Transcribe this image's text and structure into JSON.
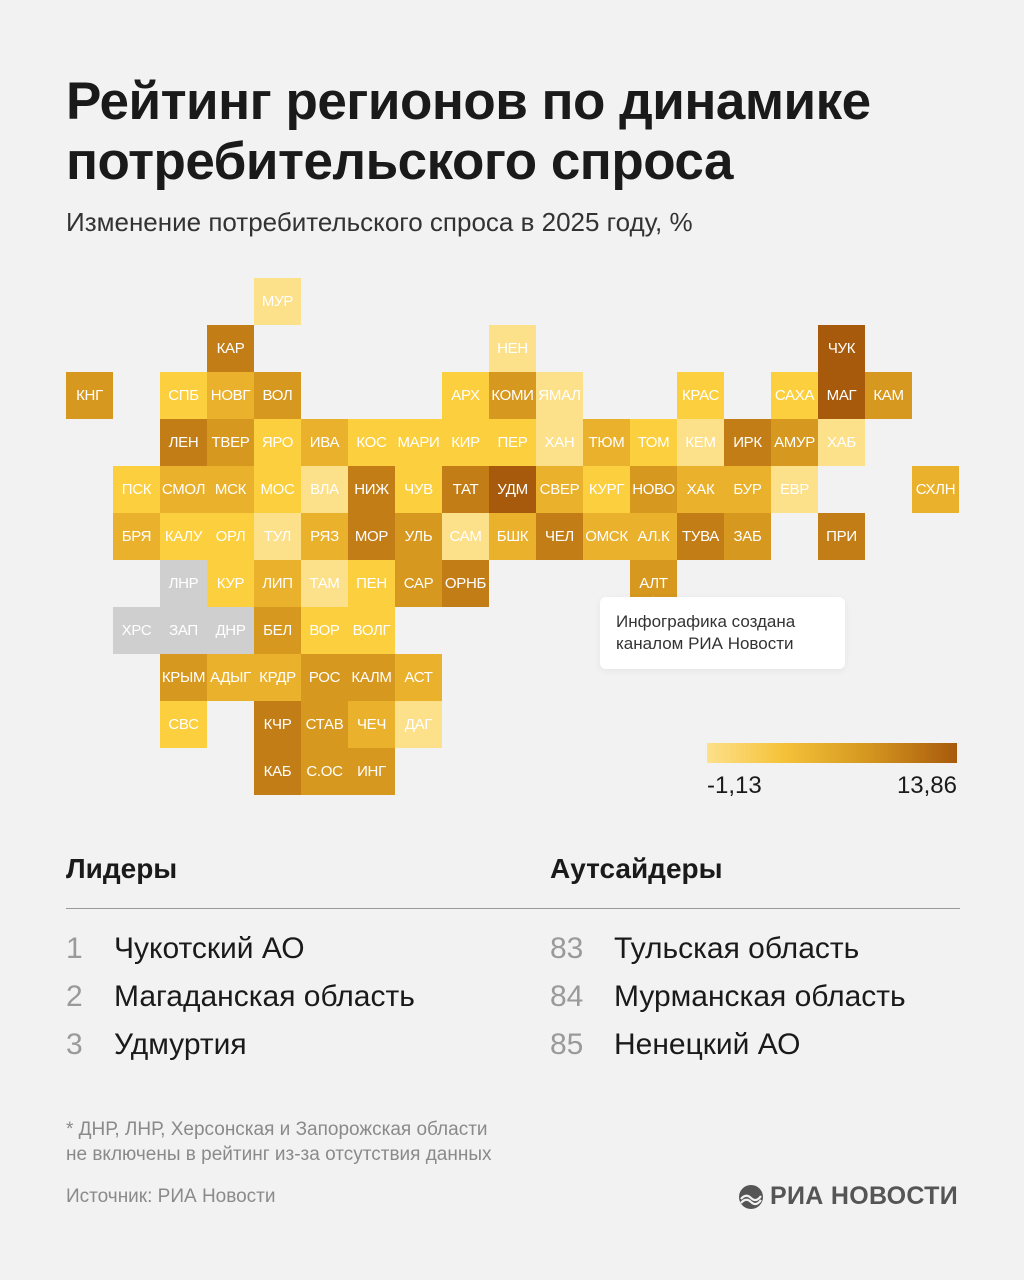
{
  "header": {
    "title_line1": "Рейтинг регионов по динамике",
    "title_line2": "потребительского спроса",
    "subtitle": "Изменение потребительского спроса в 2025 году, %"
  },
  "map": {
    "shade_colors": [
      "#fde08a",
      "#fccf3e",
      "#eab12c",
      "#d6981f",
      "#c27d17",
      "#a85a0c"
    ],
    "no_data_color": "#cfcfcf",
    "tiles": [
      [
        "МУР",
        4,
        0,
        0
      ],
      [
        "КАР",
        3,
        1,
        4
      ],
      [
        "НЕН",
        9,
        1,
        0
      ],
      [
        "ЧУК",
        16,
        1,
        5
      ],
      [
        "КНГ",
        0,
        2,
        3
      ],
      [
        "СПБ",
        2,
        2,
        1
      ],
      [
        "НОВГ",
        3,
        2,
        2
      ],
      [
        "ВОЛ",
        4,
        2,
        3
      ],
      [
        "АРХ",
        8,
        2,
        1
      ],
      [
        "КОМИ",
        9,
        2,
        3
      ],
      [
        "ЯМАЛ",
        10,
        2,
        0
      ],
      [
        "КРАС",
        13,
        2,
        1
      ],
      [
        "САХА",
        15,
        2,
        1
      ],
      [
        "МАГ",
        16,
        2,
        5
      ],
      [
        "КАМ",
        17,
        2,
        3
      ],
      [
        "ЛЕН",
        2,
        3,
        4
      ],
      [
        "ТВЕР",
        3,
        3,
        3
      ],
      [
        "ЯРО",
        4,
        3,
        1
      ],
      [
        "ИВА",
        5,
        3,
        2
      ],
      [
        "КОС",
        6,
        3,
        1
      ],
      [
        "МАРИ",
        7,
        3,
        1
      ],
      [
        "КИР",
        8,
        3,
        1
      ],
      [
        "ПЕР",
        9,
        3,
        1
      ],
      [
        "ХАН",
        10,
        3,
        0
      ],
      [
        "ТЮМ",
        11,
        3,
        2
      ],
      [
        "ТОМ",
        12,
        3,
        1
      ],
      [
        "КЕМ",
        13,
        3,
        0
      ],
      [
        "ИРК",
        14,
        3,
        4
      ],
      [
        "АМУР",
        15,
        3,
        3
      ],
      [
        "ХАБ",
        16,
        3,
        0
      ],
      [
        "ПСК",
        1,
        4,
        1
      ],
      [
        "СМОЛ",
        2,
        4,
        2
      ],
      [
        "МСК",
        3,
        4,
        2
      ],
      [
        "МОС",
        4,
        4,
        1
      ],
      [
        "ВЛА",
        5,
        4,
        0
      ],
      [
        "НИЖ",
        6,
        4,
        4
      ],
      [
        "ЧУВ",
        7,
        4,
        1
      ],
      [
        "ТАТ",
        8,
        4,
        4
      ],
      [
        "УДМ",
        9,
        4,
        5
      ],
      [
        "СВЕР",
        10,
        4,
        2
      ],
      [
        "КУРГ",
        11,
        4,
        1
      ],
      [
        "НОВО",
        12,
        4,
        3
      ],
      [
        "ХАК",
        13,
        4,
        2
      ],
      [
        "БУР",
        14,
        4,
        2
      ],
      [
        "ЕВР",
        15,
        4,
        0
      ],
      [
        "СХЛН",
        18,
        4,
        2
      ],
      [
        "БРЯ",
        1,
        5,
        2
      ],
      [
        "КАЛУ",
        2,
        5,
        1
      ],
      [
        "ОРЛ",
        3,
        5,
        1
      ],
      [
        "ТУЛ",
        4,
        5,
        0
      ],
      [
        "РЯЗ",
        5,
        5,
        2
      ],
      [
        "МОР",
        6,
        5,
        4
      ],
      [
        "УЛЬ",
        7,
        5,
        3
      ],
      [
        "САМ",
        8,
        5,
        0
      ],
      [
        "БШК",
        9,
        5,
        2
      ],
      [
        "ЧЕЛ",
        10,
        5,
        4
      ],
      [
        "ОМСК",
        11,
        5,
        2
      ],
      [
        "АЛ.К",
        12,
        5,
        2
      ],
      [
        "ТУВА",
        13,
        5,
        4
      ],
      [
        "ЗАБ",
        14,
        5,
        3
      ],
      [
        "ПРИ",
        16,
        5,
        4
      ],
      [
        "ЛНР",
        2,
        6,
        -1
      ],
      [
        "КУР",
        3,
        6,
        1
      ],
      [
        "ЛИП",
        4,
        6,
        2
      ],
      [
        "ТАМ",
        5,
        6,
        0
      ],
      [
        "ПЕН",
        6,
        6,
        1
      ],
      [
        "САР",
        7,
        6,
        3
      ],
      [
        "ОРНБ",
        8,
        6,
        4
      ],
      [
        "АЛТ",
        12,
        6,
        3
      ],
      [
        "ХРС",
        1,
        7,
        -1
      ],
      [
        "ЗАП",
        2,
        7,
        -1
      ],
      [
        "ДНР",
        3,
        7,
        -1
      ],
      [
        "БЕЛ",
        4,
        7,
        3
      ],
      [
        "ВОР",
        5,
        7,
        1
      ],
      [
        "ВОЛГ",
        6,
        7,
        1
      ],
      [
        "КРЫМ",
        2,
        8,
        3
      ],
      [
        "АДЫГ",
        3,
        8,
        2
      ],
      [
        "КРДР",
        4,
        8,
        2
      ],
      [
        "РОС",
        5,
        8,
        3
      ],
      [
        "КАЛМ",
        6,
        8,
        3
      ],
      [
        "АСТ",
        7,
        8,
        2
      ],
      [
        "СВС",
        2,
        9,
        1
      ],
      [
        "КЧР",
        4,
        9,
        4
      ],
      [
        "СТАВ",
        5,
        9,
        3
      ],
      [
        "ЧЕЧ",
        6,
        9,
        2
      ],
      [
        "ДАГ",
        7,
        9,
        0
      ],
      [
        "КАБ",
        4,
        10,
        4
      ],
      [
        "С.ОС",
        5,
        10,
        3
      ],
      [
        "ИНГ",
        6,
        10,
        3
      ]
    ],
    "callout_line1": "Инфографика создана",
    "callout_line2": "каналом РИА Новости",
    "legend": {
      "min": "-1,13",
      "max": "13,86"
    }
  },
  "leaders": {
    "heading": "Лидеры",
    "items": [
      {
        "rank": "1",
        "name": "Чукотский АО"
      },
      {
        "rank": "2",
        "name": "Магаданская область"
      },
      {
        "rank": "3",
        "name": "Удмуртия"
      }
    ]
  },
  "outsiders": {
    "heading": "Аутсайдеры",
    "items": [
      {
        "rank": "83",
        "name": "Тульская область"
      },
      {
        "rank": "84",
        "name": "Мурманская область"
      },
      {
        "rank": "85",
        "name": "Ненецкий АО"
      }
    ]
  },
  "footer": {
    "note_line1": "* ДНР, ЛНР, Херсонская и Запорожская области",
    "note_line2": "не включены в рейтинг из-за отсутствия данных",
    "source": "Источник: РИА Новости",
    "logo_text": "РИА НОВОСТИ"
  }
}
